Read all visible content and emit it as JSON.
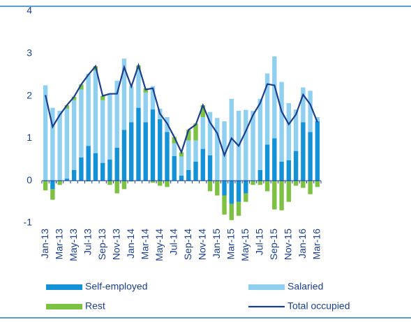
{
  "chart_data": {
    "type": "bar",
    "categories": [
      "Jan-13",
      null,
      "Mar-13",
      null,
      "May-13",
      null,
      "Jul-13",
      null,
      "Sep-13",
      null,
      "Nov-13",
      null,
      "Jan-14",
      null,
      "Mar-14",
      null,
      "May-14",
      null,
      "Jul-14",
      null,
      "Sep-14",
      null,
      "Nov-14",
      null,
      "Jan-15",
      null,
      "Mar-15",
      null,
      "May-15",
      null,
      "Jul-15",
      null,
      "Sep-15",
      null,
      "Nov-15",
      null,
      "Jan-16",
      null,
      "Mar-16"
    ],
    "series": [
      {
        "name": "Self-employed",
        "color": "#1492d8",
        "values": [
          0,
          -0.2,
          0,
          0.05,
          0.25,
          0.55,
          0.82,
          0.65,
          0.42,
          0.5,
          0.78,
          1.2,
          1.38,
          1.72,
          1.38,
          1.68,
          1.45,
          1.15,
          0.58,
          0.12,
          0.25,
          0.45,
          0.75,
          0.6,
          0,
          -0.35,
          -0.55,
          -0.5,
          -0.3,
          0,
          0.25,
          0.85,
          1.0,
          0.45,
          0.48,
          0.7,
          1.38,
          1.15,
          1.4
        ]
      },
      {
        "name": "Salaried",
        "color": "#8fd0f0",
        "values": [
          2.25,
          1.72,
          1.65,
          1.65,
          1.65,
          1.6,
          1.7,
          1.95,
          1.48,
          1.55,
          1.58,
          1.68,
          0.85,
          0.9,
          0.7,
          0.55,
          0.25,
          0.35,
          0.3,
          0.45,
          0.7,
          0.5,
          0.75,
          1.02,
          1.48,
          1.4,
          1.93,
          1.65,
          1.67,
          1.65,
          1.68,
          1.68,
          1.93,
          1.88,
          1.35,
          0.98,
          0.82,
          0.97,
          0.1
        ]
      },
      {
        "name": "Rest",
        "color": "#7cc142",
        "values": [
          -0.23,
          -0.25,
          -0.1,
          0.08,
          0.08,
          0.12,
          -0.02,
          0.1,
          0.1,
          -0.1,
          -0.3,
          -0.2,
          -0.02,
          0.1,
          0.1,
          -0.05,
          -0.12,
          -0.15,
          0.15,
          0.1,
          0.25,
          0.4,
          0.28,
          -0.25,
          -0.35,
          -0.45,
          -0.38,
          -0.33,
          -0.2,
          -0.1,
          -0.1,
          -0.25,
          -0.68,
          -0.7,
          -0.5,
          -0.12,
          -0.17,
          -0.32,
          -0.15
        ]
      },
      {
        "name": "Total occupied",
        "color": "#1b3f8f",
        "type": "line",
        "values": [
          2.02,
          1.27,
          1.55,
          1.78,
          1.98,
          2.27,
          2.5,
          2.7,
          2.0,
          2.05,
          2.05,
          2.68,
          2.22,
          2.72,
          2.15,
          2.18,
          1.58,
          1.35,
          1.03,
          0.67,
          1.2,
          1.32,
          1.78,
          1.37,
          1.12,
          0.6,
          1.0,
          0.82,
          1.17,
          1.55,
          1.83,
          2.28,
          2.25,
          1.63,
          1.33,
          1.56,
          2.03,
          1.8,
          1.38
        ]
      }
    ],
    "ylim": [
      -1,
      4
    ],
    "yticks": [
      -1,
      0,
      1,
      2,
      3,
      4
    ],
    "legend": "bottom"
  }
}
